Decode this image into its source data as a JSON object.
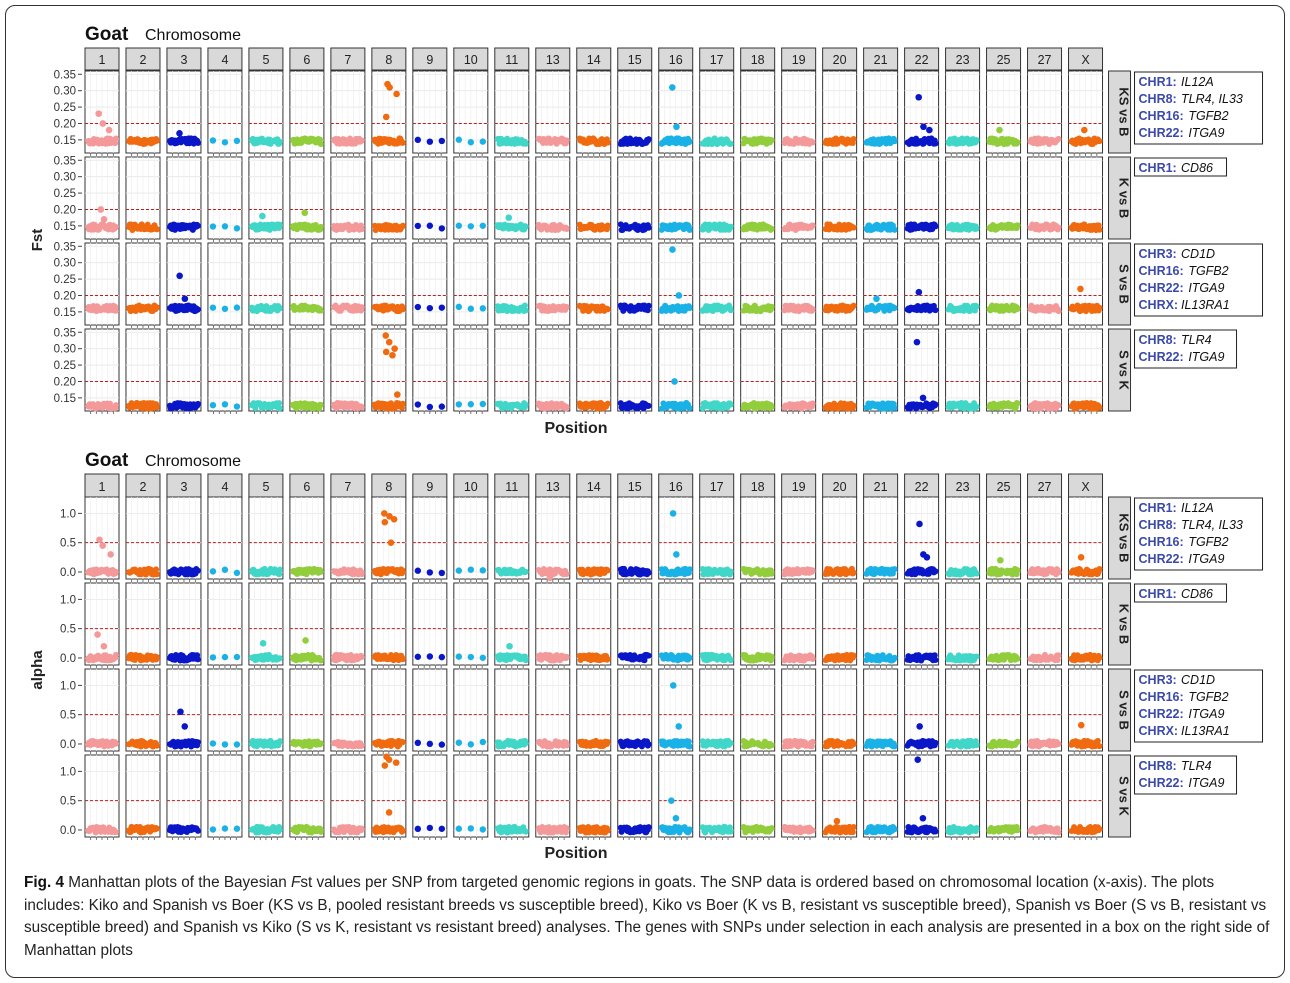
{
  "colors": {
    "pink": "#f4999a",
    "orange": "#f06a10",
    "navy": "#0a17c8",
    "teal": "#40d6c8",
    "green": "#92cd3c",
    "sky": "#1ab2e6",
    "threshold": "#b22222",
    "gene_label": "#3b4aa8"
  },
  "chart_data": [
    {
      "type": "scatter",
      "title": "Goat",
      "subtitle": "Chromosome",
      "xlabel": "Position",
      "ylabel": "Fst",
      "ylim": [
        0.11,
        0.36
      ],
      "yticks": [
        "0.35",
        "0.30",
        "0.25",
        "0.20",
        "0.15"
      ],
      "ytick_values": [
        0.35,
        0.3,
        0.25,
        0.2,
        0.15
      ],
      "threshold": 0.2,
      "chromosomes": [
        "1",
        "2",
        "3",
        "4",
        "5",
        "6",
        "7",
        "8",
        "9",
        "10",
        "11",
        "13",
        "14",
        "15",
        "16",
        "17",
        "18",
        "19",
        "20",
        "21",
        "22",
        "23",
        "25",
        "27",
        "X"
      ],
      "rows": [
        {
          "strip": "KS vs B",
          "baseline": 0.145,
          "outliers": {
            "1": [
              0.23,
              0.2,
              0.18
            ],
            "3": [
              0.17
            ],
            "8": [
              0.32,
              0.31,
              0.29,
              0.22
            ],
            "16": [
              0.31,
              0.19
            ],
            "22": [
              0.28,
              0.19,
              0.18
            ],
            "25": [
              0.18
            ],
            "X": [
              0.18
            ]
          },
          "genes": [
            {
              "chr": "CHR1:",
              "gene": "IL12A"
            },
            {
              "chr": "CHR8:",
              "gene": "TLR4, IL33"
            },
            {
              "chr": "CHR16:",
              "gene": "TGFB2"
            },
            {
              "chr": "CHR22:",
              "gene": "ITGA9"
            }
          ]
        },
        {
          "strip": "K vs B",
          "baseline": 0.145,
          "outliers": {
            "1": [
              0.2,
              0.17
            ],
            "5": [
              0.18
            ],
            "6": [
              0.19
            ],
            "11": [
              0.175
            ]
          },
          "genes": [
            {
              "chr": "CHR1:",
              "gene": "CD86"
            }
          ]
        },
        {
          "strip": "S vs B",
          "baseline": 0.16,
          "outliers": {
            "3": [
              0.26,
              0.19
            ],
            "16": [
              0.34,
              0.2
            ],
            "21": [
              0.19
            ],
            "22": [
              0.21
            ],
            "X": [
              0.22
            ]
          },
          "genes": [
            {
              "chr": "CHR3:",
              "gene": "CD1D"
            },
            {
              "chr": "CHR16:",
              "gene": "TGFB2"
            },
            {
              "chr": "CHR22:",
              "gene": "ITGA9"
            },
            {
              "chr": "CHRX:",
              "gene": "IL13RA1"
            }
          ]
        },
        {
          "strip": "S vs K",
          "baseline": 0.125,
          "outliers": {
            "8": [
              0.34,
              0.32,
              0.3,
              0.29,
              0.28,
              0.16
            ],
            "16": [
              0.2
            ],
            "22": [
              0.32,
              0.15
            ]
          },
          "genes": [
            {
              "chr": "CHR8:",
              "gene": "TLR4"
            },
            {
              "chr": "CHR22:",
              "gene": "ITGA9"
            }
          ]
        }
      ]
    },
    {
      "type": "scatter",
      "title": "Goat",
      "subtitle": "Chromosome",
      "xlabel": "Position",
      "ylabel": "alpha",
      "ylim": [
        -0.12,
        1.28
      ],
      "yticks": [
        "1.0",
        "0.5",
        "0.0"
      ],
      "ytick_values": [
        1.0,
        0.5,
        0.0
      ],
      "threshold": 0.5,
      "chromosomes": [
        "1",
        "2",
        "3",
        "4",
        "5",
        "6",
        "7",
        "8",
        "9",
        "10",
        "11",
        "13",
        "14",
        "15",
        "16",
        "17",
        "18",
        "19",
        "20",
        "21",
        "22",
        "23",
        "25",
        "27",
        "X"
      ],
      "rows": [
        {
          "strip": "KS vs B",
          "baseline": 0.0,
          "outliers": {
            "1": [
              0.55,
              0.45,
              0.3
            ],
            "8": [
              1.0,
              0.95,
              0.9,
              0.85,
              0.5
            ],
            "13": [
              -0.1
            ],
            "16": [
              1.0,
              0.3
            ],
            "22": [
              0.82,
              0.3,
              0.25
            ],
            "25": [
              0.2
            ],
            "X": [
              0.25
            ]
          },
          "genes": [
            {
              "chr": "CHR1:",
              "gene": "IL12A"
            },
            {
              "chr": "CHR8:",
              "gene": "TLR4, IL33"
            },
            {
              "chr": "CHR16:",
              "gene": "TGFB2"
            },
            {
              "chr": "CHR22:",
              "gene": "ITGA9"
            }
          ]
        },
        {
          "strip": "K vs B",
          "baseline": 0.0,
          "outliers": {
            "1": [
              0.4,
              0.2
            ],
            "5": [
              0.25
            ],
            "6": [
              0.3
            ],
            "11": [
              0.2
            ]
          },
          "genes": [
            {
              "chr": "CHR1:",
              "gene": "CD86"
            }
          ]
        },
        {
          "strip": "S vs B",
          "baseline": 0.0,
          "outliers": {
            "3": [
              0.55,
              0.3
            ],
            "16": [
              1.0,
              0.3
            ],
            "22": [
              0.3
            ],
            "X": [
              0.32
            ]
          },
          "genes": [
            {
              "chr": "CHR3:",
              "gene": "CD1D"
            },
            {
              "chr": "CHR16:",
              "gene": "TGFB2"
            },
            {
              "chr": "CHR22:",
              "gene": "ITGA9"
            },
            {
              "chr": "CHRX:",
              "gene": "IL13RA1"
            }
          ]
        },
        {
          "strip": "S vs K",
          "baseline": 0.0,
          "outliers": {
            "8": [
              1.25,
              1.2,
              1.15,
              1.1,
              0.3
            ],
            "16": [
              0.5,
              0.2
            ],
            "20": [
              0.15
            ],
            "22": [
              1.2,
              0.2
            ]
          },
          "genes": [
            {
              "chr": "CHR8:",
              "gene": "TLR4"
            },
            {
              "chr": "CHR22:",
              "gene": "ITGA9"
            }
          ]
        }
      ]
    }
  ],
  "caption": {
    "label": "Fig. 4",
    "text_before_italic": " Manhattan plots of the Bayesian ",
    "italic": "F",
    "text_after_italic": "st values per SNP from targeted genomic regions in goats. The SNP data is ordered based on chromosomal location (x-axis). The plots includes: Kiko and Spanish vs Boer (KS vs B, pooled resistant breeds vs susceptible breed), Kiko vs Boer (K vs B, resistant vs susceptible breed), Spanish vs Boer (S vs B, resistant vs susceptible breed) and Spanish vs Kiko (S vs K, resistant vs resistant breed) analyses. The genes with SNPs under selection in each analysis are presented in a box on the right side of Manhattan plots"
  }
}
